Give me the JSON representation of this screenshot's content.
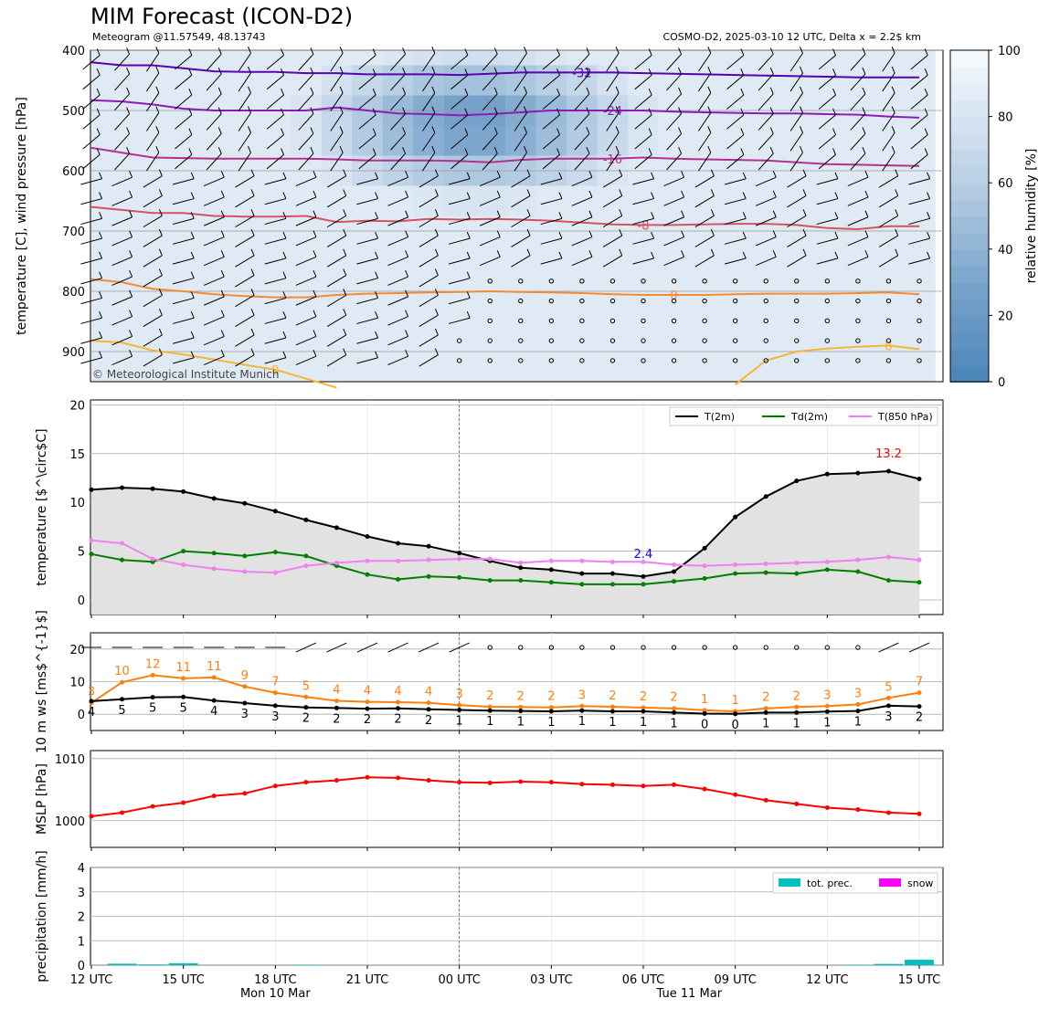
{
  "header": {
    "title": "MIM Forecast (ICON-D2)",
    "sub_left": "Meteogram @11.57549, 48.13743",
    "sub_right": "COSMO-D2, 2025-03-10 12 UTC, Delta x = 2.2$ km",
    "copyright": "© Meteorological Institute Munich"
  },
  "colors": {
    "t2m": "#000000",
    "td2m": "#008000",
    "t850": "#ee82ee",
    "wind_speed": "#ff7f0e",
    "wind_beaufort": "#000000",
    "mslp": "#ff0000",
    "precip": "#00bfbf",
    "snow": "#ff00ff",
    "max_label": "#ff0000",
    "min_label": "#0000ff",
    "rh_low": "#4a85b9",
    "rh_high": "#f7fbff"
  },
  "x_axis": {
    "ticks": [
      "12 UTC",
      "15 UTC",
      "18 UTC",
      "21 UTC",
      "00 UTC",
      "03 UTC",
      "06 UTC",
      "09 UTC",
      "12 UTC",
      "15 UTC"
    ],
    "day_labels": [
      "Mon 10 Mar",
      "Tue 11 Mar"
    ],
    "range_hours": [
      0,
      27
    ]
  },
  "chart_data": [
    {
      "type": "heatmap",
      "panel": "upper-air",
      "ylabel": "temperature [C], wind pressure [hPa]",
      "ylim": [
        950,
        400
      ],
      "yticks": [
        400,
        500,
        600,
        700,
        800,
        900
      ],
      "colorbar": {
        "label": "relative humidity [%]",
        "range": [
          0,
          100
        ],
        "ticks": [
          0,
          20,
          40,
          60,
          80,
          100
        ]
      },
      "isotherms": [
        {
          "label": "-32",
          "color": "#5b00b5",
          "pressures": [
            420,
            425,
            425,
            430,
            435,
            436,
            436,
            438,
            438,
            440,
            440,
            440,
            441,
            439,
            437,
            437,
            437,
            437,
            438,
            439,
            440,
            441,
            442,
            443,
            444,
            445,
            445,
            445
          ]
        },
        {
          "label": "-24",
          "color": "#8e1ab8",
          "pressures": [
            483,
            485,
            490,
            497,
            500,
            500,
            500,
            500,
            495,
            500,
            505,
            506,
            508,
            506,
            503,
            500,
            500,
            500,
            500,
            502,
            503,
            504,
            505,
            505,
            506,
            507,
            510,
            512
          ]
        },
        {
          "label": "-16",
          "color": "#b5308f",
          "pressures": [
            562,
            570,
            578,
            579,
            580,
            580,
            580,
            580,
            581,
            583,
            583,
            583,
            584,
            586,
            582,
            580,
            580,
            580,
            578,
            580,
            581,
            582,
            583,
            586,
            589,
            590,
            591,
            592
          ]
        },
        {
          "label": "-8",
          "color": "#d95060",
          "pressures": [
            660,
            665,
            670,
            670,
            675,
            676,
            676,
            675,
            685,
            683,
            684,
            680,
            681,
            680,
            681,
            683,
            686,
            689,
            690,
            690,
            689,
            688,
            688,
            690,
            695,
            697,
            692,
            692
          ]
        },
        {
          "label": "0",
          "color": "#f58a33",
          "pressures": [
            780,
            785,
            796,
            800,
            805,
            808,
            810,
            810,
            806,
            804,
            803,
            802,
            801,
            800,
            801,
            802,
            803,
            805,
            806,
            806,
            806,
            805,
            804,
            804,
            804,
            803,
            802,
            805
          ]
        },
        {
          "label": "8",
          "color": "#f6b632",
          "pressures": [
            882,
            885,
            898,
            905,
            913,
            922,
            930,
            945,
            960
          ]
        },
        {
          "label": "8",
          "color": "#f6b632",
          "hour_start": 21,
          "pressures": [
            955,
            915,
            900,
            895,
            892,
            890,
            896
          ]
        }
      ]
    },
    {
      "type": "line",
      "panel": "temperature",
      "ylabel": "temperature [$^\\circ$C]",
      "ylim": [
        -1.5,
        20.5
      ],
      "yticks": [
        0,
        5,
        10,
        15,
        20
      ],
      "x": [
        0,
        1,
        2,
        3,
        4,
        5,
        6,
        7,
        8,
        9,
        10,
        11,
        12,
        13,
        14,
        15,
        16,
        17,
        18,
        19,
        20,
        21,
        22,
        23,
        24,
        25,
        26,
        27
      ],
      "series": [
        {
          "name": "T(2m)",
          "values": [
            11.3,
            11.5,
            11.4,
            11.1,
            10.4,
            9.9,
            9.1,
            8.2,
            7.4,
            6.5,
            5.8,
            5.5,
            4.8,
            4.0,
            3.3,
            3.1,
            2.7,
            2.7,
            2.4,
            2.9,
            5.3,
            8.5,
            10.6,
            12.2,
            12.9,
            13.0,
            13.2,
            12.4
          ]
        },
        {
          "name": "Td(2m)",
          "values": [
            4.7,
            4.1,
            3.9,
            5.0,
            4.8,
            4.5,
            4.9,
            4.5,
            3.5,
            2.6,
            2.1,
            2.4,
            2.3,
            2.0,
            2.0,
            1.8,
            1.6,
            1.6,
            1.6,
            1.9,
            2.2,
            2.7,
            2.8,
            2.7,
            3.1,
            2.9,
            2.0,
            1.8
          ]
        },
        {
          "name": "T(850 hPa)",
          "values": [
            6.1,
            5.8,
            4.2,
            3.6,
            3.2,
            2.9,
            2.8,
            3.5,
            3.8,
            4.0,
            4.0,
            4.1,
            4.2,
            4.2,
            3.8,
            4.0,
            4.0,
            3.9,
            3.9,
            3.6,
            3.5,
            3.6,
            3.7,
            3.8,
            3.9,
            4.1,
            4.4,
            4.1
          ]
        }
      ],
      "annotations": [
        {
          "text": "13.2",
          "x": 26,
          "y": 14.6,
          "kind": "max"
        },
        {
          "text": "2.4",
          "x": 18,
          "y": 4.3,
          "kind": "min"
        }
      ]
    },
    {
      "type": "line",
      "panel": "wind",
      "ylabel": "10 m ws [ms$^{-1}$]",
      "ylim": [
        -5,
        25
      ],
      "yticks": [
        0,
        10,
        20
      ],
      "x": [
        0,
        1,
        2,
        3,
        4,
        5,
        6,
        7,
        8,
        9,
        10,
        11,
        12,
        13,
        14,
        15,
        16,
        17,
        18,
        19,
        20,
        21,
        22,
        23,
        24,
        25,
        26,
        27
      ],
      "series": [
        {
          "name": "ws",
          "values": [
            3.5,
            9.8,
            12.0,
            11.0,
            11.3,
            8.5,
            6.6,
            5.3,
            4.1,
            3.8,
            3.7,
            3.5,
            2.8,
            2.3,
            2.2,
            2.1,
            2.5,
            2.3,
            2.0,
            1.8,
            1.2,
            0.9,
            1.8,
            2.2,
            2.5,
            3.0,
            5.0,
            6.6
          ]
        },
        {
          "name": "bft",
          "values": [
            4.0,
            4.6,
            5.2,
            5.3,
            4.2,
            3.4,
            2.6,
            2.1,
            1.9,
            1.7,
            1.8,
            1.5,
            1.3,
            1.1,
            1.0,
            0.9,
            1.1,
            0.9,
            0.9,
            0.5,
            0.2,
            0.1,
            0.5,
            0.5,
            0.8,
            1.0,
            2.6,
            2.4
          ]
        }
      ],
      "ws_labels": [
        "3",
        "10",
        "12",
        "11",
        "11",
        "9",
        "7",
        "5",
        "4",
        "4",
        "4",
        "4",
        "3",
        "2",
        "2",
        "2",
        "3",
        "2",
        "2",
        "2",
        "1",
        "1",
        "2",
        "2",
        "3",
        "3",
        "5",
        "7"
      ],
      "bft_labels": [
        "4",
        "5",
        "5",
        "5",
        "4",
        "3",
        "3",
        "2",
        "2",
        "2",
        "2",
        "2",
        "1",
        "1",
        "1",
        "1",
        "1",
        "1",
        "1",
        "1",
        "0",
        "0",
        "1",
        "1",
        "1",
        "1",
        "3",
        "2"
      ]
    },
    {
      "type": "line",
      "panel": "mslp",
      "ylabel": "MSLP [hPa]",
      "ylim": [
        995.7,
        1011.3
      ],
      "yticks": [
        1000,
        1010
      ],
      "x": [
        0,
        1,
        2,
        3,
        4,
        5,
        6,
        7,
        8,
        9,
        10,
        11,
        12,
        13,
        14,
        15,
        16,
        17,
        18,
        19,
        20,
        21,
        22,
        23,
        24,
        25,
        26,
        27
      ],
      "series": [
        {
          "name": "MSLP",
          "values": [
            1000.7,
            1001.3,
            1002.3,
            1002.9,
            1004.0,
            1004.4,
            1005.6,
            1006.2,
            1006.5,
            1007.0,
            1006.9,
            1006.5,
            1006.2,
            1006.1,
            1006.3,
            1006.2,
            1005.9,
            1005.8,
            1005.6,
            1005.8,
            1005.1,
            1004.2,
            1003.3,
            1002.7,
            1002.1,
            1001.8,
            1001.3,
            1001.1
          ]
        }
      ]
    },
    {
      "type": "bar",
      "panel": "precipitation",
      "ylabel": "precipitation [mm/h]",
      "ylim": [
        0,
        4
      ],
      "yticks": [
        0,
        1,
        2,
        3,
        4
      ],
      "x": [
        1,
        2,
        3,
        7,
        25,
        26,
        27
      ],
      "series": [
        {
          "name": "tot. prec.",
          "values": [
            0.06,
            0.03,
            0.08,
            0.02,
            0.02,
            0.05,
            0.22
          ]
        },
        {
          "name": "snow",
          "values": [
            0,
            0,
            0,
            0,
            0,
            0,
            0
          ]
        }
      ]
    }
  ]
}
